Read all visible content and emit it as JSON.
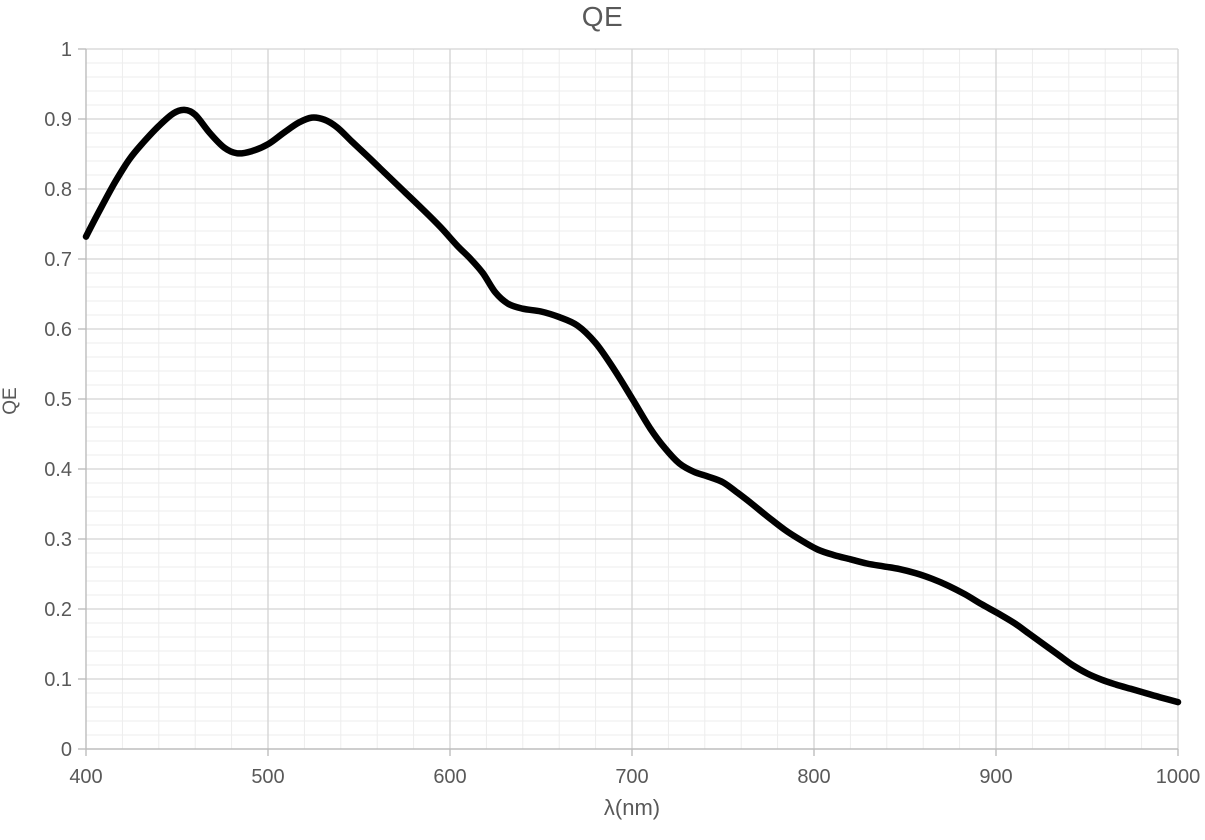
{
  "chart_data": {
    "type": "line",
    "title": "QE",
    "xlabel": "λ(nm)",
    "ylabel": "QE",
    "xlim": [
      400,
      1000
    ],
    "ylim": [
      0,
      1
    ],
    "x_minor_step": 20,
    "y_minor_step": 0.02,
    "grid": {
      "minor_on": true,
      "major_on": true,
      "legend": "none"
    },
    "x_ticks": [
      [
        400,
        "400"
      ],
      [
        500,
        "500"
      ],
      [
        600,
        "600"
      ],
      [
        700,
        "700"
      ],
      [
        800,
        "800"
      ],
      [
        900,
        "900"
      ],
      [
        1000,
        "1000"
      ]
    ],
    "y_ticks": [
      [
        0,
        "0"
      ],
      [
        0.1,
        "0.1"
      ],
      [
        0.2,
        "0.2"
      ],
      [
        0.3,
        "0.3"
      ],
      [
        0.4,
        "0.4"
      ],
      [
        0.5,
        "0.5"
      ],
      [
        0.6,
        "0.6"
      ],
      [
        0.7,
        "0.7"
      ],
      [
        0.8,
        "0.8"
      ],
      [
        0.9,
        "0.9"
      ],
      [
        1,
        "1"
      ]
    ],
    "series": [
      {
        "name": "QE",
        "points": [
          [
            400,
            0.732
          ],
          [
            408,
            0.772
          ],
          [
            416,
            0.81
          ],
          [
            424,
            0.843
          ],
          [
            432,
            0.868
          ],
          [
            440,
            0.89
          ],
          [
            448,
            0.908
          ],
          [
            454,
            0.913
          ],
          [
            460,
            0.906
          ],
          [
            468,
            0.88
          ],
          [
            476,
            0.859
          ],
          [
            483,
            0.851
          ],
          [
            491,
            0.854
          ],
          [
            500,
            0.864
          ],
          [
            509,
            0.881
          ],
          [
            517,
            0.895
          ],
          [
            524,
            0.902
          ],
          [
            531,
            0.899
          ],
          [
            538,
            0.888
          ],
          [
            546,
            0.868
          ],
          [
            555,
            0.846
          ],
          [
            565,
            0.821
          ],
          [
            575,
            0.796
          ],
          [
            585,
            0.771
          ],
          [
            595,
            0.745
          ],
          [
            604,
            0.719
          ],
          [
            611,
            0.701
          ],
          [
            618,
            0.68
          ],
          [
            625,
            0.652
          ],
          [
            632,
            0.636
          ],
          [
            640,
            0.629
          ],
          [
            650,
            0.625
          ],
          [
            660,
            0.617
          ],
          [
            670,
            0.605
          ],
          [
            680,
            0.58
          ],
          [
            690,
            0.543
          ],
          [
            700,
            0.501
          ],
          [
            710,
            0.458
          ],
          [
            718,
            0.43
          ],
          [
            726,
            0.408
          ],
          [
            734,
            0.396
          ],
          [
            742,
            0.389
          ],
          [
            750,
            0.381
          ],
          [
            758,
            0.366
          ],
          [
            766,
            0.35
          ],
          [
            775,
            0.331
          ],
          [
            784,
            0.313
          ],
          [
            793,
            0.298
          ],
          [
            802,
            0.285
          ],
          [
            811,
            0.277
          ],
          [
            820,
            0.271
          ],
          [
            829,
            0.265
          ],
          [
            838,
            0.261
          ],
          [
            847,
            0.257
          ],
          [
            856,
            0.251
          ],
          [
            865,
            0.243
          ],
          [
            874,
            0.233
          ],
          [
            883,
            0.221
          ],
          [
            892,
            0.207
          ],
          [
            901,
            0.194
          ],
          [
            910,
            0.18
          ],
          [
            918,
            0.165
          ],
          [
            926,
            0.15
          ],
          [
            934,
            0.135
          ],
          [
            942,
            0.12
          ],
          [
            950,
            0.108
          ],
          [
            958,
            0.099
          ],
          [
            966,
            0.092
          ],
          [
            974,
            0.086
          ],
          [
            982,
            0.08
          ],
          [
            990,
            0.074
          ],
          [
            1000,
            0.067
          ]
        ]
      }
    ]
  },
  "colors": {
    "curve": "#000000",
    "minor_grid": "#EDEDED",
    "major_grid": "#D3D3D3",
    "axis": "#BDBDBD",
    "text": "#595959",
    "background": "#FFFFFF"
  },
  "style": {
    "curve_width": 6.5
  }
}
